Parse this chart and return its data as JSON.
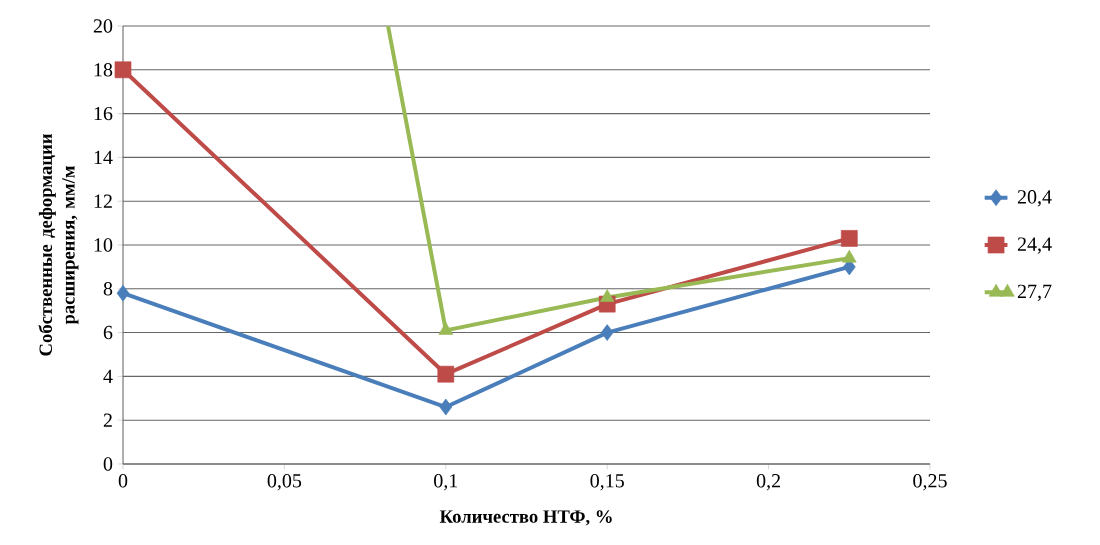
{
  "chart_data": {
    "type": "line",
    "xlabel": "Количество НТФ, %",
    "ylabel": "Собственные деформации расширения, мм/м",
    "x": [
      0,
      0.1,
      0.15,
      0.225
    ],
    "series": [
      {
        "name": "20,4",
        "color": "#4a7ebb",
        "marker": "diamond",
        "values": [
          7.8,
          2.6,
          6.0,
          9.0
        ]
      },
      {
        "name": "24,4",
        "color": "#be4b48",
        "marker": "square",
        "values": [
          18.0,
          4.1,
          7.3,
          10.3
        ]
      },
      {
        "name": "27,7",
        "color": "#98b954",
        "marker": "triangle",
        "x": [
          0.0821,
          0.1,
          0.15,
          0.225
        ],
        "values": [
          20,
          6.1,
          7.6,
          9.4
        ]
      }
    ],
    "xlim": [
      0,
      0.25
    ],
    "ylim": [
      0,
      20
    ],
    "xticks": [
      0,
      {
        "value": 0.05,
        "label": "0,05"
      },
      {
        "value": 0.1,
        "label": "0,1"
      },
      {
        "value": 0.15,
        "label": "0,15"
      },
      {
        "value": 0.2,
        "label": "0,2"
      },
      {
        "value": 0.25,
        "label": "0,25"
      }
    ],
    "yticks": [
      0,
      2,
      4,
      6,
      8,
      10,
      12,
      14,
      16,
      18,
      20
    ],
    "grid": "y",
    "legend": "right",
    "line_style": "solid"
  }
}
